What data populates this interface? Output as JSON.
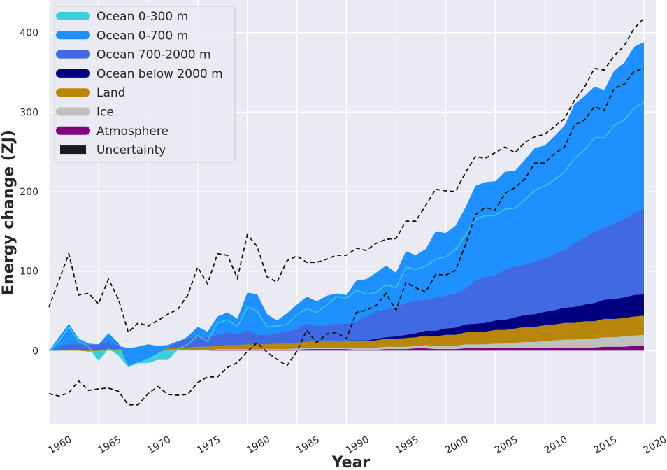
{
  "chart_data": {
    "type": "area",
    "xlabel": "Year",
    "ylabel": "Energy change (ZJ)",
    "xlim": [
      1960,
      2021.2
    ],
    "ylim": [
      -92,
      441
    ],
    "x_ticks": [
      1960,
      1965,
      1970,
      1975,
      1980,
      1985,
      1990,
      1995,
      2000,
      2005,
      2010,
      2015,
      2020
    ],
    "y_ticks": [
      0,
      100,
      200,
      300,
      400
    ],
    "grid": true,
    "background": "#EAEAF2",
    "legend_position": "top-left",
    "stacked": true,
    "years": [
      1960,
      1961,
      1962,
      1963,
      1964,
      1965,
      1966,
      1967,
      1968,
      1969,
      1970,
      1971,
      1972,
      1973,
      1974,
      1975,
      1976,
      1977,
      1978,
      1979,
      1980,
      1981,
      1982,
      1983,
      1984,
      1985,
      1986,
      1987,
      1988,
      1989,
      1990,
      1991,
      1992,
      1993,
      1994,
      1995,
      1996,
      1997,
      1998,
      1999,
      2000,
      2001,
      2002,
      2003,
      2004,
      2005,
      2006,
      2007,
      2008,
      2009,
      2010,
      2011,
      2012,
      2013,
      2014,
      2015,
      2016,
      2017,
      2018,
      2019,
      2020
    ],
    "stack_series": [
      {
        "name": "Atmosphere",
        "color": "#800080",
        "values": [
          0,
          0,
          0,
          0,
          -1,
          0,
          0,
          0,
          0,
          0,
          0,
          0,
          0,
          0,
          0,
          0,
          0,
          1,
          1,
          1,
          1,
          1,
          1,
          1,
          1,
          1,
          2,
          2,
          2,
          2,
          2,
          1,
          1,
          1,
          2,
          2,
          2,
          3,
          3,
          2,
          2,
          2,
          3,
          3,
          3,
          3,
          3,
          3,
          4,
          3,
          3,
          4,
          4,
          4,
          4,
          4,
          5,
          5,
          5,
          6,
          6
        ]
      },
      {
        "name": "Ice",
        "color": "#C0C0C0",
        "values": [
          0,
          0,
          0,
          0,
          0,
          0,
          0,
          0,
          0,
          0,
          0,
          0,
          0,
          1,
          1,
          1,
          1,
          1,
          1,
          1,
          1,
          1,
          1,
          1,
          1,
          2,
          2,
          2,
          2,
          2,
          2,
          2,
          2,
          3,
          3,
          3,
          3,
          3,
          4,
          4,
          4,
          4,
          5,
          5,
          5,
          6,
          6,
          7,
          7,
          8,
          9,
          9,
          10,
          10,
          11,
          11,
          12,
          12,
          13,
          13,
          14
        ]
      },
      {
        "name": "Land",
        "color": "#B8860B",
        "values": [
          0,
          0,
          1,
          1,
          1,
          1,
          1,
          2,
          2,
          2,
          3,
          3,
          3,
          3,
          3,
          4,
          4,
          4,
          5,
          5,
          6,
          6,
          6,
          7,
          7,
          7,
          7,
          8,
          8,
          8,
          9,
          9,
          9,
          9,
          10,
          10,
          11,
          11,
          12,
          12,
          14,
          14,
          15,
          16,
          16,
          17,
          17,
          18,
          19,
          19,
          20,
          20,
          21,
          21,
          22,
          22,
          23,
          23,
          23,
          24,
          24
        ]
      },
      {
        "name": "Ocean below 2000 m",
        "color": "#000080",
        "values": [
          0,
          0,
          0,
          0,
          0,
          0,
          0,
          0,
          0,
          0,
          0,
          0,
          0,
          0,
          0,
          0,
          0,
          0,
          0,
          0,
          0,
          0,
          0,
          0,
          0,
          0,
          0,
          0,
          0,
          0,
          0,
          1,
          1,
          2,
          2,
          3,
          4,
          5,
          6,
          7,
          8,
          9,
          10,
          10,
          11,
          12,
          13,
          14,
          15,
          16,
          17,
          18,
          19,
          20,
          21,
          23,
          24,
          25,
          26,
          27,
          27
        ]
      },
      {
        "name": "Ocean 700-2000 m",
        "color": "#4169E1",
        "values": [
          0,
          5,
          8,
          7,
          8,
          7,
          11,
          4,
          1,
          3,
          5,
          3,
          4,
          8,
          12,
          13,
          12,
          14,
          16,
          14,
          18,
          12,
          12,
          13,
          15,
          18,
          23,
          19,
          20,
          22,
          21,
          24,
          30,
          35,
          35,
          37,
          40,
          41,
          39,
          42,
          41,
          43,
          45,
          54,
          58,
          57,
          63,
          64,
          63,
          66,
          67,
          71,
          73,
          80,
          84,
          90,
          91,
          95,
          99,
          103,
          108
        ]
      },
      {
        "name": "Ocean 0-700 m",
        "color": "#1E90FF",
        "values": [
          0,
          12,
          25,
          7,
          1,
          0,
          10,
          4,
          -24,
          -20,
          -18,
          -9,
          -4,
          -2,
          2,
          12,
          7,
          23,
          25,
          19,
          47,
          51,
          26,
          16,
          23,
          30,
          34,
          31,
          37,
          38,
          36,
          51,
          47,
          48,
          55,
          43,
          65,
          57,
          64,
          83,
          79,
          85,
          102,
          119,
          119,
          118,
          123,
          120,
          132,
          143,
          142,
          148,
          156,
          175,
          178,
          182,
          173,
          192,
          196,
          209,
          209
        ]
      }
    ],
    "line_series": {
      "name": "Ocean 0-300 m",
      "color": "#3CCFD8",
      "values": [
        0,
        12,
        30,
        12,
        5,
        -12,
        3,
        -5,
        -20,
        -15,
        -15,
        -11,
        -11,
        2,
        8,
        19,
        12,
        35,
        39,
        30,
        55,
        50,
        30,
        31,
        33,
        45,
        53,
        48,
        57,
        68,
        66,
        76,
        71,
        73,
        83,
        79,
        105,
        102,
        106,
        115,
        118,
        127,
        145,
        165,
        170,
        170,
        178,
        179,
        190,
        202,
        207,
        215,
        225,
        242,
        252,
        268,
        268,
        283,
        290,
        305,
        312
      ]
    },
    "uncertainty": {
      "name": "Uncertainty",
      "color": "#111111",
      "upper": [
        55,
        88,
        122,
        70,
        72,
        59,
        90,
        65,
        23,
        35,
        31,
        38,
        46,
        52,
        70,
        105,
        84,
        122,
        120,
        91,
        146,
        131,
        93,
        86,
        113,
        119,
        111,
        111,
        115,
        120,
        120,
        129,
        126,
        135,
        140,
        141,
        163,
        163,
        183,
        203,
        201,
        200,
        224,
        244,
        242,
        249,
        256,
        249,
        262,
        269,
        272,
        282,
        292,
        315,
        331,
        355,
        353,
        371,
        383,
        405,
        418
      ],
      "lower": [
        -54,
        -57,
        -53,
        -38,
        -50,
        -48,
        -47,
        -51,
        -68,
        -68,
        -54,
        -45,
        -55,
        -56,
        -55,
        -40,
        -33,
        -33,
        -21,
        -15,
        -1,
        10,
        -2,
        -11,
        -19,
        -1,
        26,
        10,
        21,
        23,
        15,
        48,
        51,
        57,
        72,
        51,
        86,
        79,
        74,
        96,
        95,
        101,
        133,
        171,
        180,
        177,
        198,
        205,
        216,
        236,
        236,
        248,
        256,
        284,
        290,
        307,
        302,
        330,
        335,
        351,
        355
      ]
    }
  },
  "legend": {
    "items": [
      {
        "label": "Ocean 0-300 m",
        "color": "#3CCFD8",
        "shape": "line"
      },
      {
        "label": "Ocean 0-700 m",
        "color": "#1E90FF",
        "shape": "line"
      },
      {
        "label": "Ocean 700-2000 m",
        "color": "#4169E1",
        "shape": "line"
      },
      {
        "label": "Ocean below 2000 m",
        "color": "#000080",
        "shape": "line"
      },
      {
        "label": "Land",
        "color": "#B8860B",
        "shape": "line"
      },
      {
        "label": "Ice",
        "color": "#C0C0C0",
        "shape": "line"
      },
      {
        "label": "Atmosphere",
        "color": "#800080",
        "shape": "line"
      },
      {
        "label": "Uncertainty",
        "color": "#1a1a1a",
        "shape": "rect"
      }
    ]
  }
}
